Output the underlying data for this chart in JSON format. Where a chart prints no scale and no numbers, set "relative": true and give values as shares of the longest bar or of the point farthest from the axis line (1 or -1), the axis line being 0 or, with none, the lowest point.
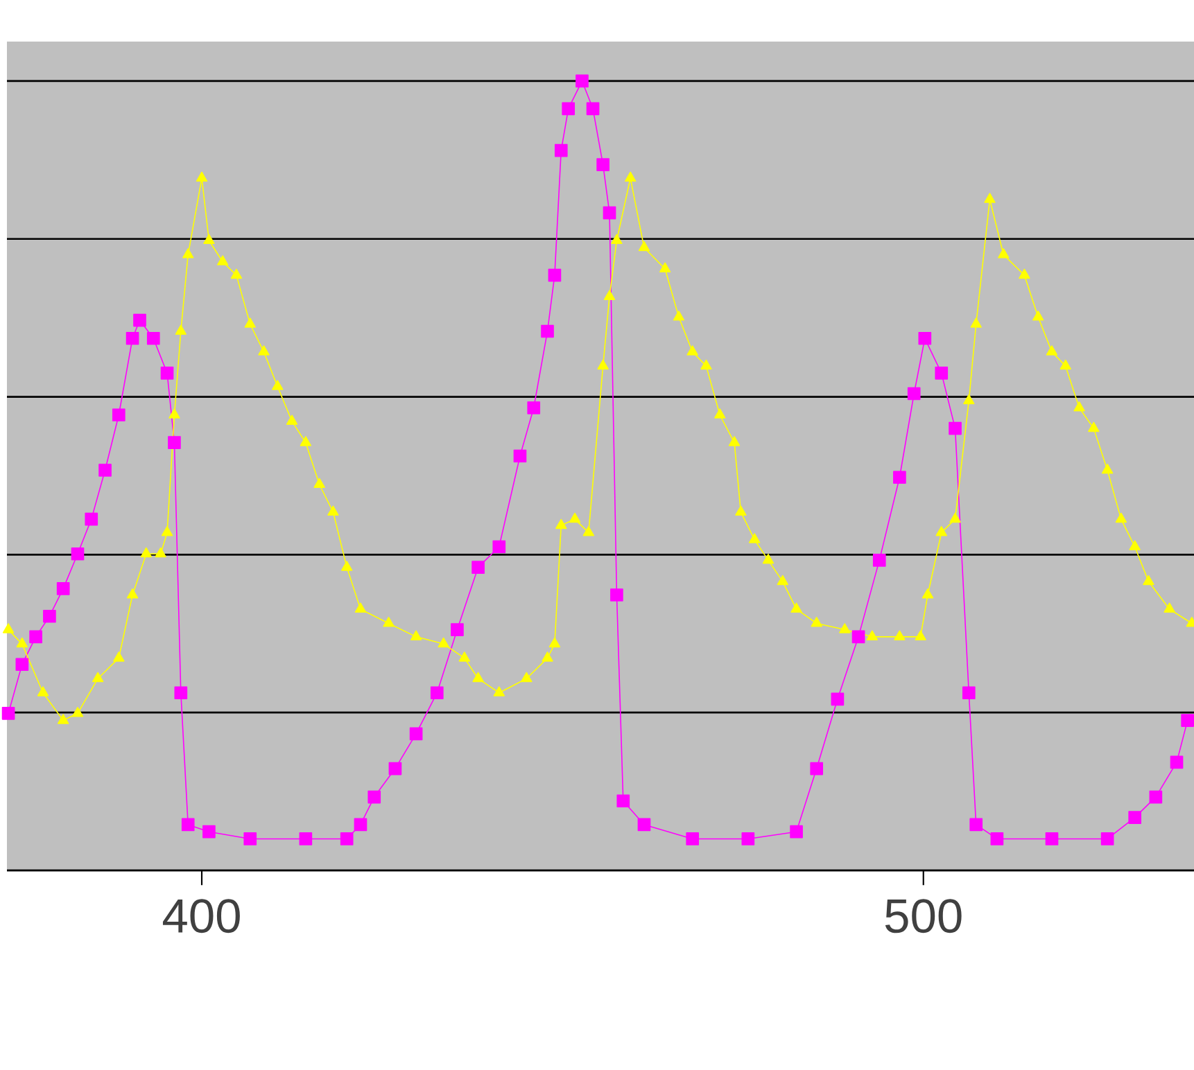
{
  "chart_data": {
    "type": "line",
    "relative": true,
    "xlim": [
      373,
      537.5
    ],
    "xticks": [
      400,
      500
    ],
    "tick_labels": "x",
    "grid": "y",
    "line_style": "solid",
    "series": [
      {
        "color": "#ff00ff",
        "marker": "square",
        "x": [
          373.2,
          375.1,
          377.0,
          378.9,
          380.8,
          382.8,
          384.7,
          386.6,
          388.5,
          390.4,
          391.4,
          393.3,
          395.2,
          396.2,
          397.1,
          398.1,
          401.0,
          406.7,
          414.4,
          420.1,
          422.0,
          423.9,
          426.8,
          429.7,
          432.6,
          435.4,
          438.3,
          441.2,
          444.1,
          446.0,
          447.9,
          448.9,
          449.8,
          450.8,
          452.7,
          454.2,
          455.6,
          456.5,
          457.5,
          458.4,
          461.3,
          468.0,
          475.7,
          482.4,
          485.2,
          488.1,
          491.0,
          493.9,
          496.7,
          498.7,
          500.2,
          502.5,
          504.4,
          506.3,
          507.3,
          510.2,
          517.8,
          525.5,
          529.3,
          532.2,
          535.1,
          536.6
        ],
        "values": [
          0.199,
          0.261,
          0.296,
          0.322,
          0.357,
          0.401,
          0.445,
          0.507,
          0.577,
          0.674,
          0.697,
          0.674,
          0.63,
          0.542,
          0.225,
          0.058,
          0.049,
          0.04,
          0.04,
          0.04,
          0.058,
          0.093,
          0.129,
          0.173,
          0.225,
          0.305,
          0.384,
          0.41,
          0.525,
          0.586,
          0.683,
          0.754,
          0.912,
          0.965,
          1,
          0.965,
          0.894,
          0.833,
          0.349,
          0.088,
          0.058,
          0.04,
          0.04,
          0.049,
          0.129,
          0.217,
          0.296,
          0.393,
          0.498,
          0.604,
          0.674,
          0.63,
          0.56,
          0.225,
          0.058,
          0.04,
          0.04,
          0.04,
          0.067,
          0.093,
          0.137,
          0.19
        ]
      },
      {
        "color": "#ffff00",
        "marker": "triangle",
        "x": [
          373.2,
          375.1,
          378.0,
          380.8,
          382.8,
          385.6,
          388.5,
          390.4,
          392.3,
          394.3,
          395.2,
          396.2,
          397.1,
          398.1,
          400.0,
          401.0,
          402.9,
          404.8,
          406.7,
          408.6,
          410.5,
          412.5,
          414.4,
          416.3,
          418.2,
          420.1,
          422.0,
          425.9,
          429.7,
          433.5,
          436.4,
          438.3,
          441.2,
          445.0,
          447.9,
          448.9,
          449.8,
          451.7,
          453.6,
          455.6,
          456.5,
          457.5,
          459.4,
          461.3,
          464.2,
          466.1,
          468.0,
          469.9,
          471.8,
          473.8,
          474.7,
          476.6,
          478.5,
          480.5,
          482.4,
          485.2,
          489.1,
          492.9,
          496.7,
          499.6,
          500.6,
          502.5,
          504.4,
          506.3,
          507.3,
          509.2,
          511.1,
          514.0,
          515.9,
          517.8,
          519.7,
          521.6,
          523.6,
          525.5,
          527.4,
          529.3,
          531.2,
          534.1,
          537.2
        ],
        "values": [
          0.305,
          0.287,
          0.225,
          0.19,
          0.199,
          0.243,
          0.269,
          0.349,
          0.401,
          0.401,
          0.428,
          0.577,
          0.683,
          0.78,
          0.877,
          0.798,
          0.771,
          0.754,
          0.692,
          0.657,
          0.613,
          0.569,
          0.542,
          0.489,
          0.454,
          0.384,
          0.331,
          0.313,
          0.296,
          0.287,
          0.269,
          0.243,
          0.225,
          0.243,
          0.269,
          0.287,
          0.437,
          0.445,
          0.428,
          0.639,
          0.727,
          0.798,
          0.877,
          0.789,
          0.762,
          0.701,
          0.657,
          0.639,
          0.577,
          0.542,
          0.454,
          0.419,
          0.393,
          0.366,
          0.331,
          0.313,
          0.305,
          0.296,
          0.296,
          0.296,
          0.349,
          0.428,
          0.445,
          0.595,
          0.692,
          0.85,
          0.78,
          0.754,
          0.701,
          0.657,
          0.639,
          0.586,
          0.56,
          0.507,
          0.445,
          0.41,
          0.366,
          0.331,
          0.313
        ]
      }
    ]
  }
}
